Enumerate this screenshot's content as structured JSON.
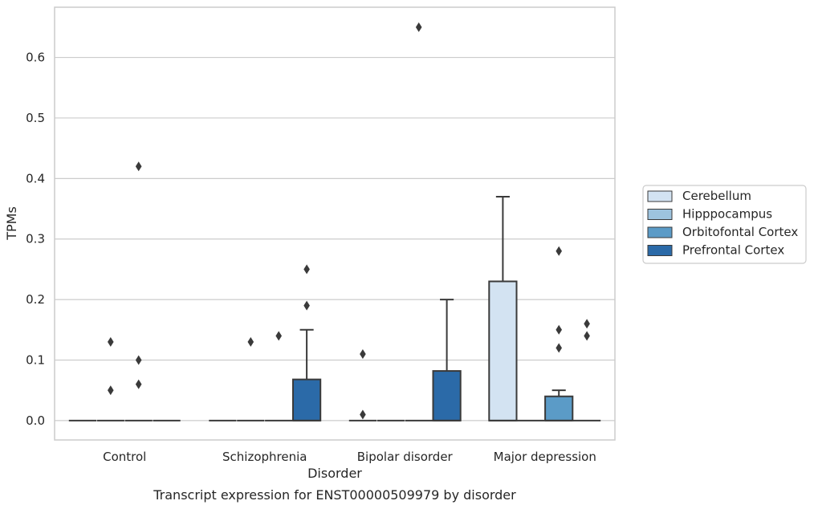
{
  "chart_data": {
    "type": "boxplot",
    "caption": "Transcript expression for ENST00000509979 by disorder",
    "xlabel": "Disorder",
    "ylabel": "TPMs",
    "ylim": [
      -0.032,
      0.683
    ],
    "yticks": [
      0.0,
      0.1,
      0.2,
      0.3,
      0.4,
      0.5,
      0.6
    ],
    "ytick_labels": [
      "0.0",
      "0.1",
      "0.2",
      "0.3",
      "0.4",
      "0.5",
      "0.6"
    ],
    "grid": "horizontal",
    "legend_position": "right",
    "categories": [
      "Control",
      "Schizophrenia",
      "Bipolar disorder",
      "Major depression"
    ],
    "series": [
      {
        "name": "Cerebellum",
        "color": "#d3e3f2",
        "boxes": [
          {
            "q1": 0,
            "median": 0,
            "q3": 0,
            "whisker_low": 0,
            "whisker_high": 0,
            "outliers": []
          },
          {
            "q1": 0,
            "median": 0,
            "q3": 0,
            "whisker_low": 0,
            "whisker_high": 0,
            "outliers": []
          },
          {
            "q1": 0,
            "median": 0,
            "q3": 0,
            "whisker_low": 0,
            "whisker_high": 0,
            "outliers": [
              0.11,
              0.01
            ]
          },
          {
            "q1": 0,
            "median": 0,
            "q3": 0.23,
            "whisker_low": 0,
            "whisker_high": 0.37,
            "outliers": []
          }
        ]
      },
      {
        "name": "Hipppocampus",
        "color": "#9dc3de",
        "boxes": [
          {
            "q1": 0,
            "median": 0,
            "q3": 0,
            "whisker_low": 0,
            "whisker_high": 0,
            "outliers": [
              0.13,
              0.05
            ]
          },
          {
            "q1": 0,
            "median": 0,
            "q3": 0,
            "whisker_low": 0,
            "whisker_high": 0,
            "outliers": [
              0.13
            ]
          },
          {
            "q1": 0,
            "median": 0,
            "q3": 0,
            "whisker_low": 0,
            "whisker_high": 0,
            "outliers": []
          },
          {
            "q1": 0,
            "median": 0,
            "q3": 0,
            "whisker_low": 0,
            "whisker_high": 0,
            "outliers": []
          }
        ]
      },
      {
        "name": "Orbitofontal Cortex",
        "color": "#5b9bc7",
        "boxes": [
          {
            "q1": 0,
            "median": 0,
            "q3": 0,
            "whisker_low": 0,
            "whisker_high": 0,
            "outliers": [
              0.42,
              0.1,
              0.06
            ]
          },
          {
            "q1": 0,
            "median": 0,
            "q3": 0,
            "whisker_low": 0,
            "whisker_high": 0,
            "outliers": [
              0.14
            ]
          },
          {
            "q1": 0,
            "median": 0,
            "q3": 0,
            "whisker_low": 0,
            "whisker_high": 0,
            "outliers": [
              0.65
            ]
          },
          {
            "q1": 0,
            "median": 0,
            "q3": 0.04,
            "whisker_low": 0,
            "whisker_high": 0.05,
            "outliers": [
              0.28,
              0.15,
              0.12
            ]
          }
        ]
      },
      {
        "name": "Prefrontal Cortex",
        "color": "#2b6aa8",
        "boxes": [
          {
            "q1": 0,
            "median": 0,
            "q3": 0,
            "whisker_low": 0,
            "whisker_high": 0,
            "outliers": []
          },
          {
            "q1": 0,
            "median": 0,
            "q3": 0.068,
            "whisker_low": 0,
            "whisker_high": 0.15,
            "outliers": [
              0.25,
              0.19
            ]
          },
          {
            "q1": 0,
            "median": 0,
            "q3": 0.082,
            "whisker_low": 0,
            "whisker_high": 0.2,
            "outliers": []
          },
          {
            "q1": 0,
            "median": 0,
            "q3": 0,
            "whisker_low": 0,
            "whisker_high": 0,
            "outliers": [
              0.16,
              0.14
            ]
          }
        ]
      }
    ]
  }
}
